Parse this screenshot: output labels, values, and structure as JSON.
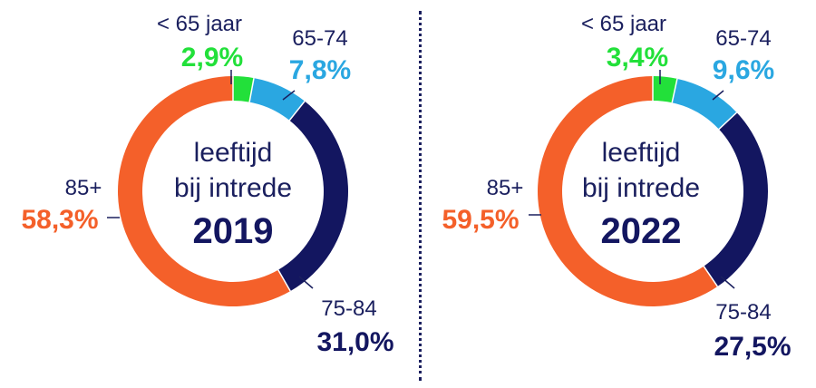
{
  "chart_data": [
    {
      "type": "pie",
      "style": "donut",
      "center_text": {
        "line1": "leeftijd",
        "line2": "bij intrede",
        "year": "2019"
      },
      "slices": [
        {
          "label": "< 65 jaar",
          "value": 2.9,
          "value_label": "2,9%",
          "color": "#22e03a"
        },
        {
          "label": "65-74",
          "value": 7.8,
          "value_label": "7,8%",
          "color": "#2aa7e1"
        },
        {
          "label": "75-84",
          "value": 31.0,
          "value_label": "31,0%",
          "color": "#131660"
        },
        {
          "label": "85+",
          "value": 58.3,
          "value_label": "58,3%",
          "color": "#f4602a"
        }
      ]
    },
    {
      "type": "pie",
      "style": "donut",
      "center_text": {
        "line1": "leeftijd",
        "line2": "bij intrede",
        "year": "2022"
      },
      "slices": [
        {
          "label": "< 65 jaar",
          "value": 3.4,
          "value_label": "3,4%",
          "color": "#22e03a"
        },
        {
          "label": "65-74",
          "value": 9.6,
          "value_label": "9,6%",
          "color": "#2aa7e1"
        },
        {
          "label": "75-84",
          "value": 27.5,
          "value_label": "27,5%",
          "color": "#131660"
        },
        {
          "label": "85+",
          "value": 59.5,
          "value_label": "59,5%",
          "color": "#f4602a"
        }
      ]
    }
  ],
  "colors": {
    "text": "#1a1f5e",
    "divider": "#1a1f5e"
  }
}
